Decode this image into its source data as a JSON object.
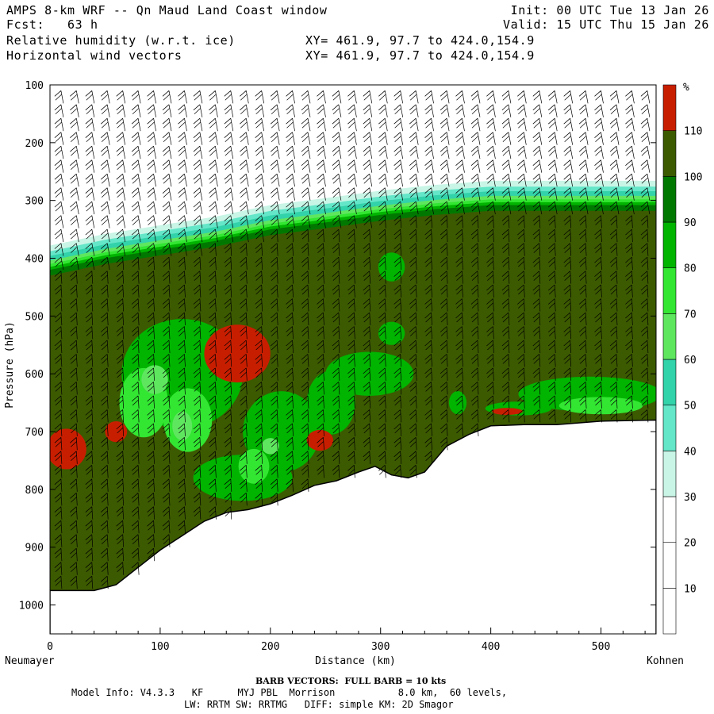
{
  "header": {
    "title_line": "AMPS 8-km WRF -- Qn Maud Land Coast window",
    "fcst_line": "Fcst:   63 h",
    "field1_line": "Relative humidity (w.r.t. ice)",
    "field2_line": "Horizontal wind vectors",
    "xy1_line": "XY= 461.9, 97.7 to 424.0,154.9",
    "xy2_line": "XY= 461.9, 97.7 to 424.0,154.9",
    "init_line": "Init: 00 UTC Tue 13 Jan 26",
    "valid_line": "Valid: 15 UTC Thu 15 Jan 26"
  },
  "chart_data": {
    "type": "heatmap",
    "xlabel": "Distance (km)",
    "ylabel": "Pressure (hPa)",
    "xlim": [
      0,
      550
    ],
    "ylim": [
      1050,
      100
    ],
    "x_ticks": [
      0,
      100,
      200,
      300,
      400,
      500
    ],
    "y_ticks": [
      100,
      200,
      300,
      400,
      500,
      600,
      700,
      800,
      900,
      1000
    ],
    "left_endpoint": "Neumayer",
    "right_endpoint": "Kohnen",
    "colorbar": {
      "unit": "%",
      "levels": [
        10,
        20,
        30,
        40,
        50,
        60,
        70,
        80,
        90,
        100,
        110
      ],
      "colors": [
        "#ffffff",
        "#ffffff",
        "#ffffff",
        "#c8f5e6",
        "#64e6c8",
        "#32d2aa",
        "#5fe65f",
        "#32e632",
        "#00b400",
        "#007800",
        "#3c5a00",
        "#c81e00"
      ]
    },
    "terrain_surface": {
      "x": [
        0,
        20,
        40,
        60,
        80,
        100,
        120,
        140,
        160,
        180,
        200,
        220,
        240,
        260,
        280,
        295,
        310,
        325,
        340,
        360,
        380,
        400,
        430,
        460,
        500,
        550
      ],
      "pressure": [
        975,
        975,
        975,
        965,
        935,
        905,
        880,
        855,
        840,
        835,
        825,
        810,
        793,
        785,
        770,
        760,
        775,
        780,
        770,
        725,
        705,
        690,
        688,
        688,
        682,
        680
      ]
    },
    "moist_layer_top": {
      "x": [
        0,
        50,
        100,
        150,
        200,
        250,
        300,
        350,
        400,
        450,
        500,
        550
      ],
      "pressure": [
        420,
        400,
        385,
        370,
        350,
        338,
        325,
        315,
        308,
        308,
        308,
        308
      ]
    },
    "wind_barbs": "FULL BARB = 10 kts"
  },
  "footer": {
    "barb_title": "BARB VECTORS:  FULL BARB = 10 kts",
    "model_line1": "Model Info: V4.3.3   KF      MYJ PBL  Morrison           8.0 km,  60 levels,",
    "model_line2": "LW: RRTM SW: RRTMG   DIFF: simple KM: 2D Smagor"
  }
}
